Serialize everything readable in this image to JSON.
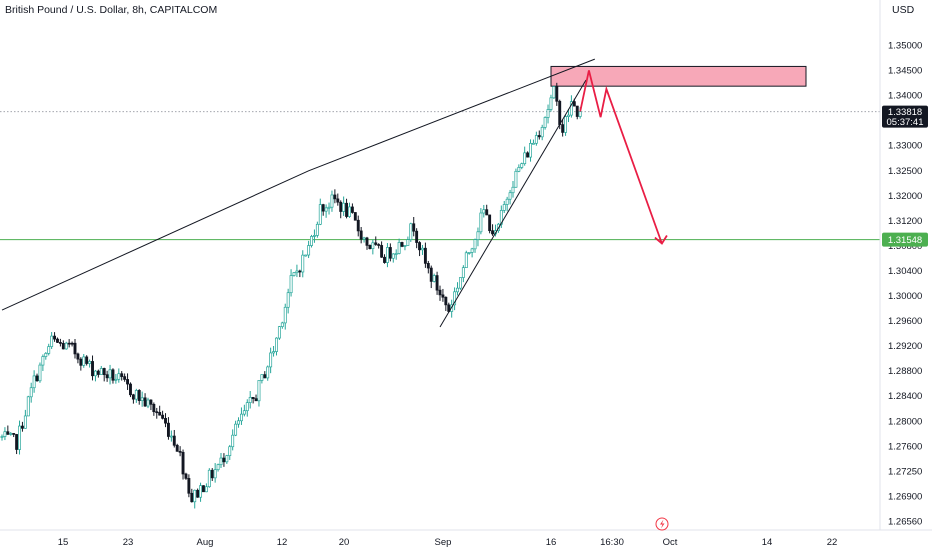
{
  "header": {
    "title": "British Pound / U.S. Dollar, 8h, CAPITALCOM",
    "currency": "USD"
  },
  "colors": {
    "up": "#26a69a",
    "up_fill": "#ffffff",
    "down": "#131722",
    "level_line": "#4caf50",
    "zone_fill": "#f7a8b8",
    "arrow": "#e91e45",
    "trendline": "#131722"
  },
  "chart_data": {
    "type": "candlestick",
    "title": "British Pound / U.S. Dollar, 8h, CAPITALCOM",
    "y_axis": {
      "range": [
        1.2625,
        1.3525
      ],
      "ticks": [
        "1.35000",
        "1.34500",
        "1.34000",
        "1.33500",
        "1.33000",
        "1.32500",
        "1.32000",
        "1.31200",
        "1.30800",
        "1.30400",
        "1.30000",
        "1.29600",
        "1.29200",
        "1.28800",
        "1.28400",
        "1.28000",
        "1.27600",
        "1.27250",
        "1.26900",
        "1.26560"
      ],
      "position": "right"
    },
    "x_axis": {
      "ticks": [
        "15",
        "23",
        "Aug",
        "12",
        "20",
        "Sep",
        "16",
        "16:30",
        "Oct",
        "14",
        "22"
      ]
    },
    "current_price": {
      "label": "1.33818",
      "countdown": "05:37:41",
      "value": 1.33818
    },
    "support_level": {
      "label": "1.31548",
      "value": 1.31548
    },
    "resistance_zone": {
      "from": 1.3427,
      "to": 1.3462
    },
    "anchors": [
      {
        "x": 0,
        "y": 1.2805
      },
      {
        "x": 6,
        "y": 1.2795
      },
      {
        "x": 12,
        "y": 1.2905
      },
      {
        "x": 18,
        "y": 1.2975
      },
      {
        "x": 25,
        "y": 1.296
      },
      {
        "x": 32,
        "y": 1.2925
      },
      {
        "x": 40,
        "y": 1.291
      },
      {
        "x": 48,
        "y": 1.2875
      },
      {
        "x": 55,
        "y": 1.2845
      },
      {
        "x": 61,
        "y": 1.279
      },
      {
        "x": 66,
        "y": 1.2695
      },
      {
        "x": 70,
        "y": 1.272
      },
      {
        "x": 76,
        "y": 1.276
      },
      {
        "x": 82,
        "y": 1.283
      },
      {
        "x": 88,
        "y": 1.288
      },
      {
        "x": 94,
        "y": 1.296
      },
      {
        "x": 100,
        "y": 1.308
      },
      {
        "x": 106,
        "y": 1.314
      },
      {
        "x": 110,
        "y": 1.321
      },
      {
        "x": 115,
        "y": 1.3225
      },
      {
        "x": 120,
        "y": 1.32
      },
      {
        "x": 126,
        "y": 1.3148
      },
      {
        "x": 132,
        "y": 1.3125
      },
      {
        "x": 138,
        "y": 1.315
      },
      {
        "x": 142,
        "y": 1.318
      },
      {
        "x": 146,
        "y": 1.311
      },
      {
        "x": 150,
        "y": 1.307
      },
      {
        "x": 154,
        "y": 1.303
      },
      {
        "x": 158,
        "y": 1.309
      },
      {
        "x": 162,
        "y": 1.315
      },
      {
        "x": 166,
        "y": 1.3205
      },
      {
        "x": 170,
        "y": 1.316
      },
      {
        "x": 175,
        "y": 1.325
      },
      {
        "x": 180,
        "y": 1.33
      },
      {
        "x": 185,
        "y": 1.335
      },
      {
        "x": 190,
        "y": 1.3415
      },
      {
        "x": 193,
        "y": 1.335
      },
      {
        "x": 196,
        "y": 1.3395
      },
      {
        "x": 198,
        "y": 1.3382
      }
    ],
    "series": [
      {
        "type": "line",
        "role": "upper-trendline",
        "points": [
          [
            0,
            1.303
          ],
          [
            105,
            1.3277
          ],
          [
            203,
            1.3475
          ]
        ]
      },
      {
        "type": "line",
        "role": "lower-trendline",
        "points": [
          [
            150,
            1.3
          ],
          [
            200,
            1.3438
          ]
        ]
      },
      {
        "type": "line",
        "role": "projection",
        "points": [
          [
            198,
            1.3382
          ],
          [
            201,
            1.3455
          ],
          [
            205,
            1.3372
          ],
          [
            207,
            1.3422
          ],
          [
            226,
            1.3148
          ]
        ]
      }
    ]
  }
}
